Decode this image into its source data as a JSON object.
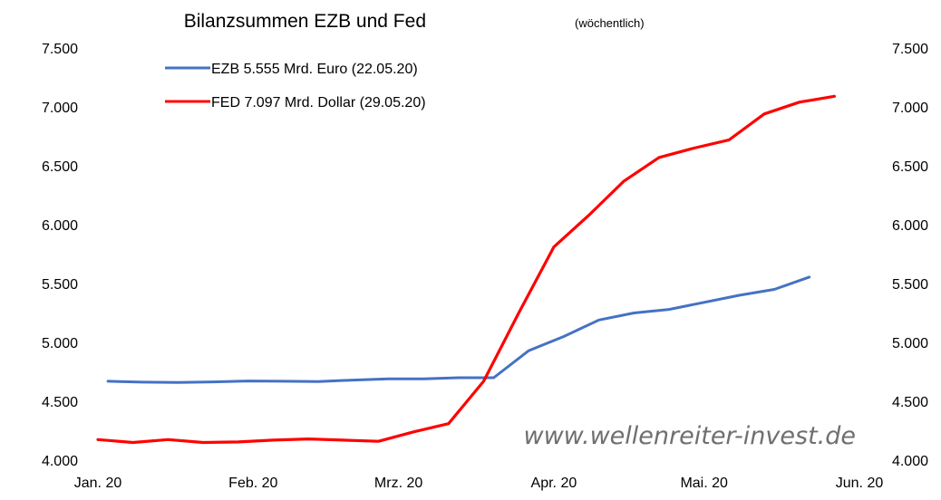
{
  "chart_data": {
    "type": "line",
    "title": "Bilanzsummen EZB und Fed",
    "subtitle": "(wöchentlich)",
    "watermark": "www.wellenreiter-invest.de",
    "ylim": [
      4000,
      7500
    ],
    "y_ticks": [
      "4.000",
      "4.500",
      "5.000",
      "5.500",
      "6.000",
      "6.500",
      "7.000",
      "7.500"
    ],
    "y_tick_values": [
      4000,
      4500,
      5000,
      5500,
      6000,
      6500,
      7000,
      7500
    ],
    "x_ticks": [
      "Jan. 20",
      "Feb. 20",
      "Mrz. 20",
      "Apr. 20",
      "Mai. 20",
      "Jun. 20"
    ],
    "x_tick_dates": [
      "2020-01-01",
      "2020-02-01",
      "2020-03-01",
      "2020-04-01",
      "2020-05-01",
      "2020-06-01"
    ],
    "x_range": [
      "2020-01-01",
      "2020-06-01"
    ],
    "grid": false,
    "legend_position": "top-left",
    "series": [
      {
        "name": "EZB 5.555 Mrd. Euro (22.05.20)",
        "color": "#4472C4",
        "points": [
          [
            "2020-01-03",
            4670
          ],
          [
            "2020-01-10",
            4662
          ],
          [
            "2020-01-17",
            4660
          ],
          [
            "2020-01-24",
            4665
          ],
          [
            "2020-01-31",
            4672
          ],
          [
            "2020-02-07",
            4670
          ],
          [
            "2020-02-14",
            4668
          ],
          [
            "2020-02-21",
            4680
          ],
          [
            "2020-02-28",
            4690
          ],
          [
            "2020-03-06",
            4690
          ],
          [
            "2020-03-13",
            4700
          ],
          [
            "2020-03-20",
            4700
          ],
          [
            "2020-03-27",
            4930
          ],
          [
            "2020-04-03",
            5050
          ],
          [
            "2020-04-10",
            5190
          ],
          [
            "2020-04-17",
            5250
          ],
          [
            "2020-04-24",
            5280
          ],
          [
            "2020-05-01",
            5340
          ],
          [
            "2020-05-08",
            5400
          ],
          [
            "2020-05-15",
            5450
          ],
          [
            "2020-05-22",
            5555
          ]
        ]
      },
      {
        "name": "FED 7.097 Mrd. Dollar (29.05.20)",
        "color": "#FF0000",
        "points": [
          [
            "2020-01-01",
            4175
          ],
          [
            "2020-01-08",
            4150
          ],
          [
            "2020-01-15",
            4175
          ],
          [
            "2020-01-22",
            4150
          ],
          [
            "2020-01-29",
            4155
          ],
          [
            "2020-02-05",
            4170
          ],
          [
            "2020-02-12",
            4180
          ],
          [
            "2020-02-19",
            4170
          ],
          [
            "2020-02-26",
            4160
          ],
          [
            "2020-03-04",
            4240
          ],
          [
            "2020-03-11",
            4310
          ],
          [
            "2020-03-18",
            4670
          ],
          [
            "2020-03-25",
            5250
          ],
          [
            "2020-04-01",
            5810
          ],
          [
            "2020-04-08",
            6080
          ],
          [
            "2020-04-15",
            6370
          ],
          [
            "2020-04-22",
            6570
          ],
          [
            "2020-04-29",
            6650
          ],
          [
            "2020-05-06",
            6720
          ],
          [
            "2020-05-13",
            6940
          ],
          [
            "2020-05-20",
            7040
          ],
          [
            "2020-05-27",
            7090
          ]
        ]
      }
    ]
  }
}
